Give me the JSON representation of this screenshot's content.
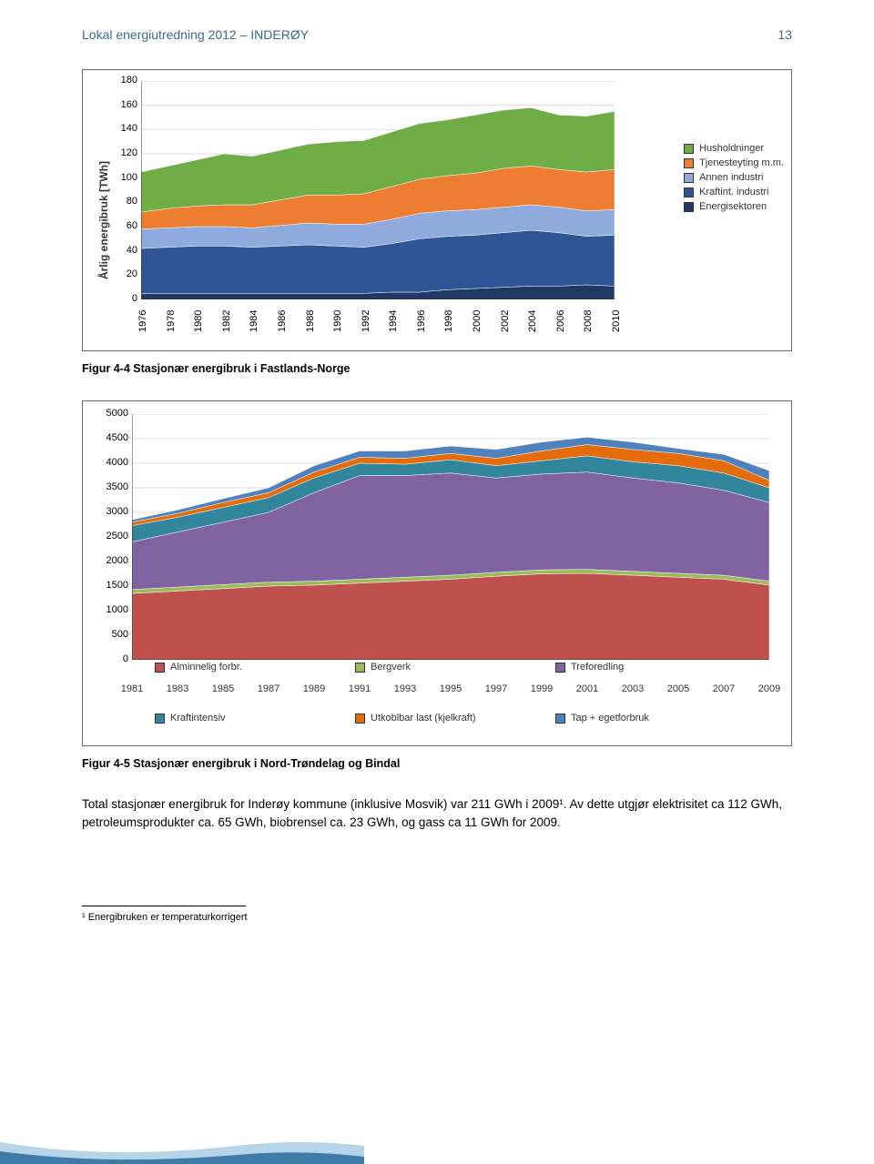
{
  "header": {
    "title": "Lokal energiutredning 2012 – INDERØY",
    "page": "13"
  },
  "chart1": {
    "type": "area",
    "ylabel": "Årlig energibruk [TWh]",
    "ylim": [
      0,
      180
    ],
    "ytick_step": 20,
    "yticks": [
      0,
      20,
      40,
      60,
      80,
      100,
      120,
      140,
      160,
      180
    ],
    "xticks": [
      "1976",
      "1978",
      "1980",
      "1982",
      "1984",
      "1986",
      "1988",
      "1990",
      "1992",
      "1994",
      "1996",
      "1998",
      "2000",
      "2002",
      "2004",
      "2006",
      "2008",
      "2010"
    ],
    "series": [
      {
        "name": "Energisektoren",
        "color": "#203864",
        "top": [
          5,
          5,
          5,
          5,
          5,
          5,
          5,
          5,
          5,
          6,
          6,
          8,
          9,
          10,
          11,
          11,
          12,
          11
        ]
      },
      {
        "name": "Kraftint. industri",
        "color": "#2f5597",
        "top": [
          42,
          43,
          44,
          44,
          43,
          44,
          45,
          44,
          43,
          46,
          50,
          52,
          53,
          55,
          57,
          55,
          52,
          53
        ]
      },
      {
        "name": "Annen industri",
        "color": "#8faadc",
        "top": [
          58,
          59,
          60,
          60,
          59,
          61,
          63,
          62,
          62,
          66,
          71,
          73,
          74,
          76,
          78,
          76,
          73,
          74
        ]
      },
      {
        "name": "Tjenesteyting m.m.",
        "color": "#ed7d31",
        "top": [
          72,
          75,
          77,
          78,
          78,
          82,
          86,
          86,
          87,
          93,
          99,
          102,
          104,
          108,
          110,
          107,
          105,
          107
        ]
      },
      {
        "name": "Husholdninger",
        "color": "#70ad47",
        "top": [
          105,
          110,
          115,
          120,
          118,
          123,
          128,
          130,
          131,
          138,
          145,
          148,
          152,
          156,
          158,
          152,
          151,
          155
        ]
      }
    ],
    "legend": [
      {
        "label": "Husholdninger",
        "color": "#70ad47"
      },
      {
        "label": "Tjenesteyting m.m.",
        "color": "#ed7d31"
      },
      {
        "label": "Annen industri",
        "color": "#8faadc"
      },
      {
        "label": "Kraftint. industri",
        "color": "#2f5597"
      },
      {
        "label": "Energisektoren",
        "color": "#203864"
      }
    ],
    "background_color": "#ffffff",
    "grid_color": "#dddddd",
    "label_fontsize": 11
  },
  "caption1": "Figur 4-4 Stasjonær energibruk i Fastlands-Norge",
  "chart2": {
    "type": "area",
    "ylim": [
      0,
      5000
    ],
    "ytick_step": 500,
    "yticks": [
      0,
      500,
      1000,
      1500,
      2000,
      2500,
      3000,
      3500,
      4000,
      4500,
      5000
    ],
    "xticks": [
      "1981",
      "1983",
      "1985",
      "1987",
      "1989",
      "1991",
      "1993",
      "1995",
      "1997",
      "1999",
      "2001",
      "2003",
      "2005",
      "2007",
      "2009"
    ],
    "series": [
      {
        "name": "Alminnelig forbr.",
        "color": "#c0504d",
        "top": [
          1350,
          1400,
          1450,
          1500,
          1520,
          1560,
          1600,
          1640,
          1700,
          1750,
          1760,
          1720,
          1680,
          1640,
          1520
        ]
      },
      {
        "name": "Bergverk",
        "color": "#9bbb59",
        "top": [
          1430,
          1480,
          1530,
          1580,
          1600,
          1640,
          1680,
          1720,
          1780,
          1830,
          1840,
          1800,
          1760,
          1720,
          1600
        ]
      },
      {
        "name": "Treforedling",
        "color": "#8064a2",
        "top": [
          2400,
          2600,
          2800,
          3000,
          3400,
          3750,
          3750,
          3800,
          3700,
          3780,
          3820,
          3700,
          3600,
          3450,
          3200
        ]
      },
      {
        "name": "Kraftintensiv",
        "color": "#31859c",
        "top": [
          2730,
          2900,
          3100,
          3300,
          3700,
          4000,
          3980,
          4070,
          3950,
          4050,
          4150,
          4030,
          3950,
          3800,
          3500
        ]
      },
      {
        "name": "Utkoblbar last (kjelkraft)",
        "color": "#e46c0a",
        "top": [
          2800,
          2980,
          3200,
          3400,
          3820,
          4120,
          4100,
          4200,
          4100,
          4250,
          4380,
          4280,
          4200,
          4050,
          3650
        ]
      },
      {
        "name": "Tap + egetforbruk",
        "color": "#4f81bd",
        "top": [
          2850,
          3050,
          3280,
          3500,
          3950,
          4250,
          4250,
          4350,
          4280,
          4430,
          4530,
          4430,
          4300,
          4180,
          3850
        ]
      }
    ],
    "legend": [
      {
        "label": "Alminnelig forbr.",
        "color": "#c0504d"
      },
      {
        "label": "Bergverk",
        "color": "#9bbb59"
      },
      {
        "label": "Treforedling",
        "color": "#8064a2"
      },
      {
        "label": "Kraftintensiv",
        "color": "#31859c"
      },
      {
        "label": "Utkoblbar last (kjelkraft)",
        "color": "#e46c0a"
      },
      {
        "label": "Tap + egetforbruk",
        "color": "#4f81bd"
      }
    ],
    "background_color": "#ffffff",
    "grid_color": "#dddddd",
    "label_fontsize": 11
  },
  "caption2": "Figur 4-5 Stasjonær energibruk i Nord-Trøndelag og Bindal",
  "paragraph": "Total stasjonær energibruk for Inderøy kommune (inklusive Mosvik) var 211 GWh i 2009¹. Av dette utgjør elektrisitet ca 112 GWh, petroleumsprodukter ca. 65 GWh, biobrensel ca. 23 GWh, og gass ca 11 GWh for 2009.",
  "footnote": "¹ Energibruken er temperaturkorrigert",
  "footer_colors": {
    "light": "#b6d4e8",
    "dark": "#3f7ba8"
  }
}
